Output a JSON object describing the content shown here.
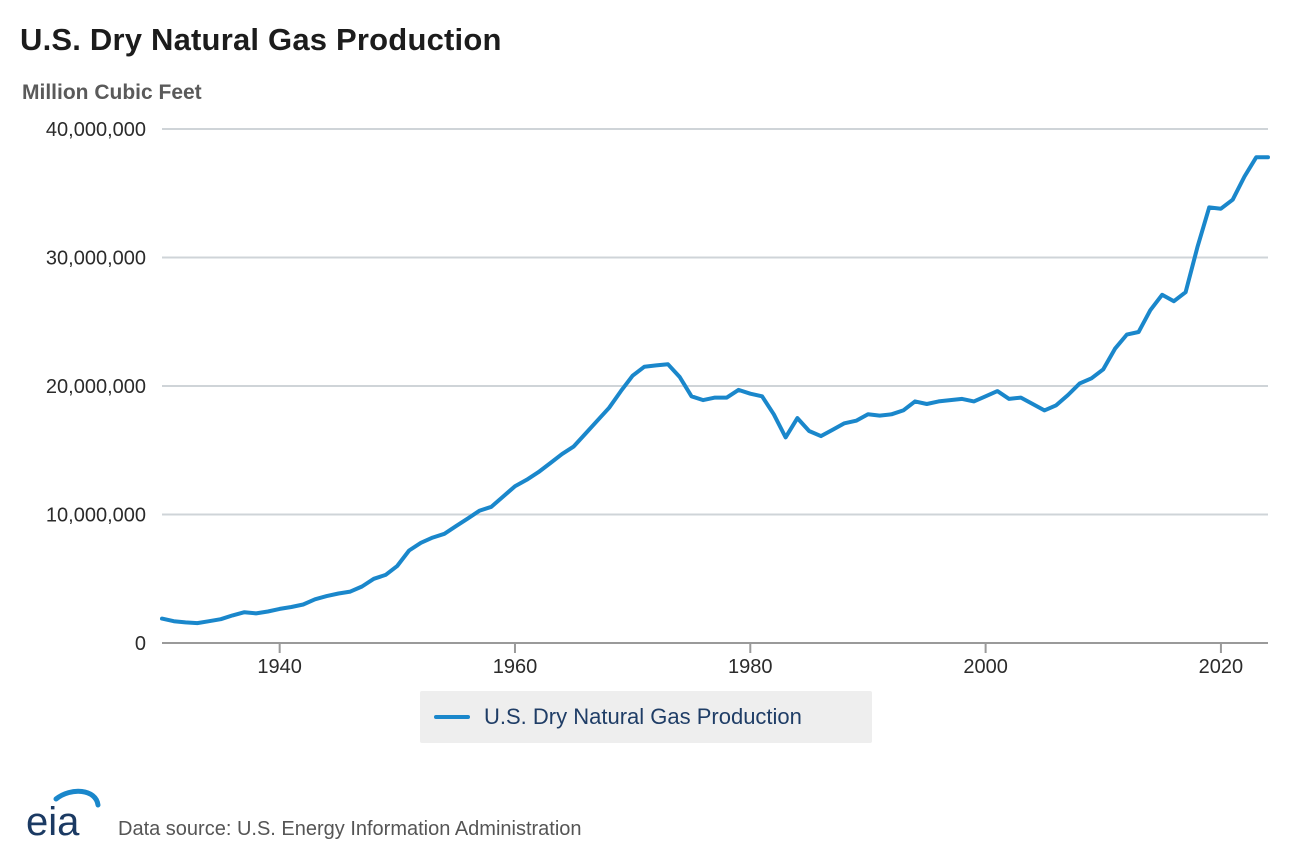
{
  "chart_data": {
    "type": "line",
    "title": "U.S. Dry Natural Gas Production",
    "ylabel": "Million Cubic Feet",
    "xlabel": "",
    "xlim": [
      1930,
      2024
    ],
    "ylim": [
      0,
      40000000
    ],
    "yticks": [
      0,
      10000000,
      20000000,
      30000000,
      40000000
    ],
    "ytick_labels": [
      "0",
      "10,000,000",
      "20,000,000",
      "30,000,000",
      "40,000,000"
    ],
    "xticks": [
      1940,
      1960,
      1980,
      2000,
      2020
    ],
    "xtick_labels": [
      "1940",
      "1960",
      "1980",
      "2000",
      "2020"
    ],
    "grid": true,
    "legend_position": "bottom-center",
    "color": "#1a87cb",
    "series": [
      {
        "name": "U.S. Dry Natural Gas Production",
        "x": [
          1930,
          1931,
          1932,
          1933,
          1934,
          1935,
          1936,
          1937,
          1938,
          1939,
          1940,
          1941,
          1942,
          1943,
          1944,
          1945,
          1946,
          1947,
          1948,
          1949,
          1950,
          1951,
          1952,
          1953,
          1954,
          1955,
          1956,
          1957,
          1958,
          1959,
          1960,
          1961,
          1962,
          1963,
          1964,
          1965,
          1966,
          1967,
          1968,
          1969,
          1970,
          1971,
          1972,
          1973,
          1974,
          1975,
          1976,
          1977,
          1978,
          1979,
          1980,
          1981,
          1982,
          1983,
          1984,
          1985,
          1986,
          1987,
          1988,
          1989,
          1990,
          1991,
          1992,
          1993,
          1994,
          1995,
          1996,
          1997,
          1998,
          1999,
          2000,
          2001,
          2002,
          2003,
          2004,
          2005,
          2006,
          2007,
          2008,
          2009,
          2010,
          2011,
          2012,
          2013,
          2014,
          2015,
          2016,
          2017,
          2018,
          2019,
          2020,
          2021,
          2022,
          2023,
          2024
        ],
        "values": [
          1900000,
          1700000,
          1600000,
          1550000,
          1700000,
          1850000,
          2150000,
          2400000,
          2300000,
          2450000,
          2650000,
          2800000,
          3000000,
          3400000,
          3650000,
          3850000,
          4000000,
          4400000,
          5000000,
          5300000,
          6000000,
          7200000,
          7800000,
          8200000,
          8500000,
          9100000,
          9700000,
          10300000,
          10600000,
          11400000,
          12200000,
          12700000,
          13300000,
          14000000,
          14700000,
          15300000,
          16300000,
          17300000,
          18300000,
          19600000,
          20800000,
          21500000,
          21600000,
          21700000,
          20700000,
          19200000,
          18900000,
          19100000,
          19100000,
          19700000,
          19400000,
          19200000,
          17800000,
          16000000,
          17500000,
          16500000,
          16100000,
          16600000,
          17100000,
          17300000,
          17800000,
          17700000,
          17800000,
          18100000,
          18800000,
          18600000,
          18800000,
          18900000,
          19000000,
          18800000,
          19200000,
          19600000,
          19000000,
          19100000,
          18600000,
          18100000,
          18500000,
          19300000,
          20200000,
          20600000,
          21300000,
          22900000,
          24000000,
          24200000,
          25900000,
          27100000,
          26600000,
          27300000,
          30800000,
          33900000,
          33800000,
          34500000,
          36300000,
          37800000,
          37800000
        ]
      }
    ]
  },
  "footer": {
    "logo_text": "eia",
    "source_text": "Data source: U.S. Energy Information Administration"
  }
}
